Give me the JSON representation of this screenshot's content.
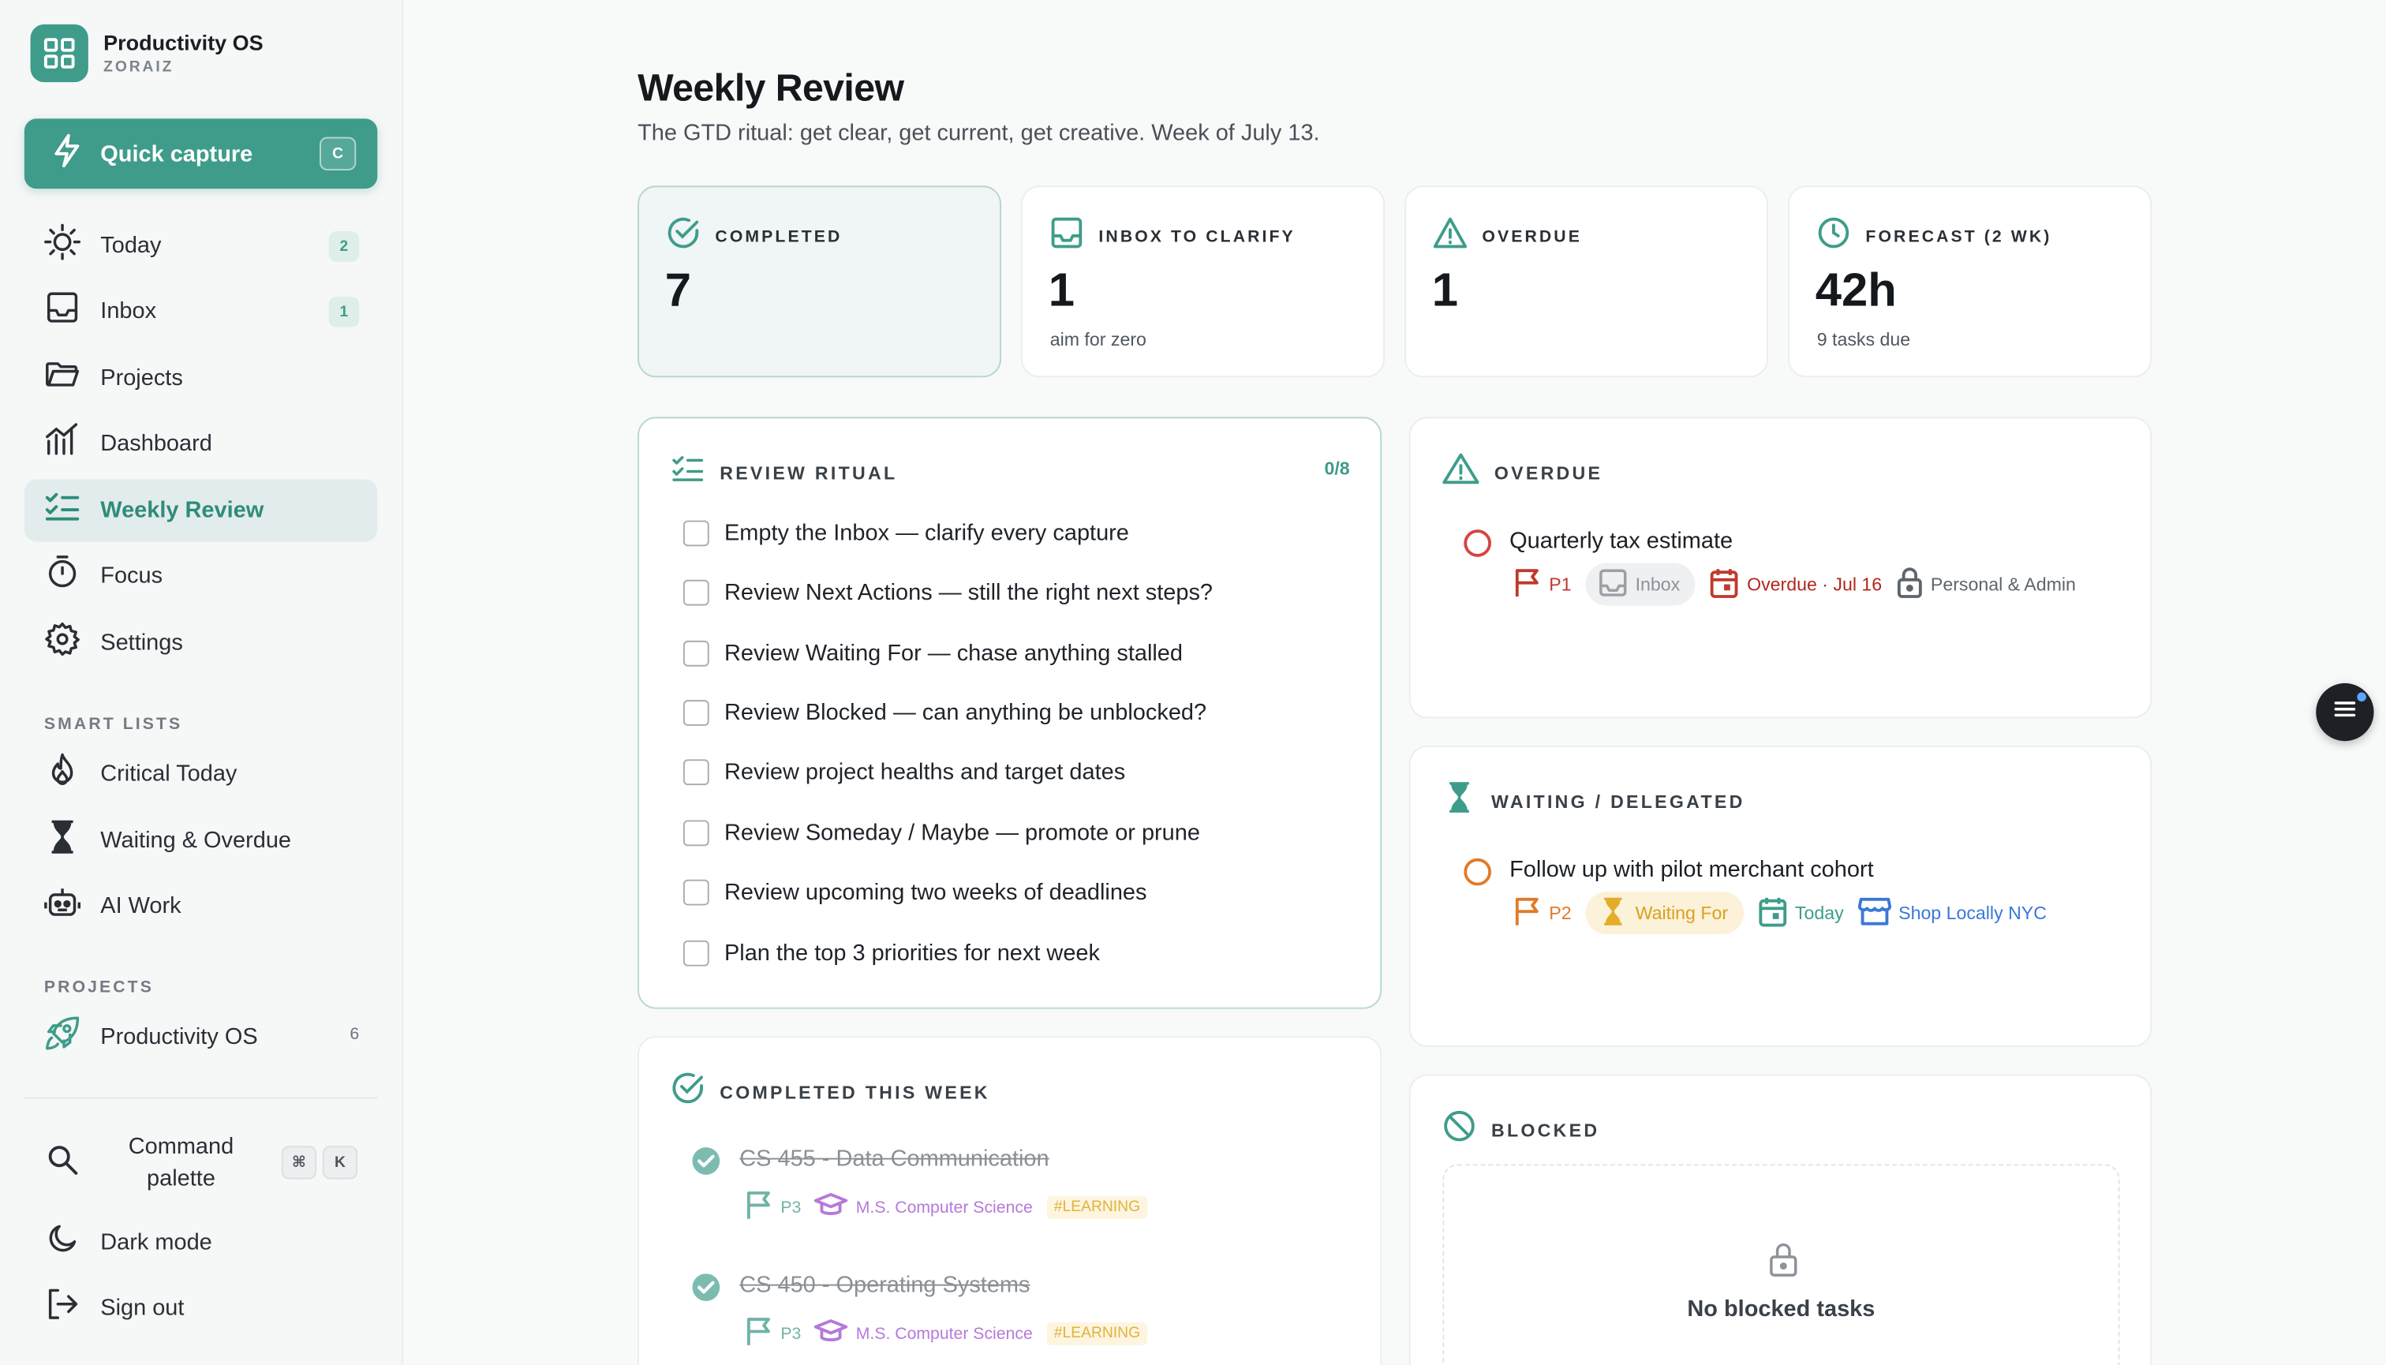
{
  "brand": {
    "name": "Productivity OS",
    "user": "ZORAIZ"
  },
  "quick_capture": {
    "label": "Quick capture",
    "shortcut": "C"
  },
  "nav": [
    {
      "label": "Today",
      "badge": "2",
      "icon": "sun-icon"
    },
    {
      "label": "Inbox",
      "badge": "1",
      "icon": "inbox-icon"
    },
    {
      "label": "Projects",
      "icon": "folder-icon"
    },
    {
      "label": "Dashboard",
      "icon": "chart-icon"
    },
    {
      "label": "Weekly Review",
      "icon": "checklist-icon",
      "active": true
    },
    {
      "label": "Focus",
      "icon": "timer-icon"
    },
    {
      "label": "Settings",
      "icon": "gear-icon"
    }
  ],
  "smart_lists": {
    "heading": "SMART LISTS",
    "items": [
      {
        "label": "Critical Today",
        "icon": "flame-icon"
      },
      {
        "label": "Waiting & Overdue",
        "icon": "hourglass-icon"
      },
      {
        "label": "AI Work",
        "icon": "robot-icon"
      }
    ]
  },
  "projects": {
    "heading": "PROJECTS",
    "items": [
      {
        "label": "Productivity OS",
        "count": "6",
        "icon": "rocket-icon"
      }
    ]
  },
  "footer": {
    "command_palette": "Command palette",
    "command_keys": [
      "⌘",
      "K"
    ],
    "dark_mode": "Dark mode",
    "sign_out": "Sign out"
  },
  "page": {
    "title": "Weekly Review",
    "subtitle": "The GTD ritual: get clear, get current, get creative. Week of July 13."
  },
  "stats": [
    {
      "label": "COMPLETED",
      "value": "7",
      "sub": "",
      "icon": "check-circle-icon"
    },
    {
      "label": "INBOX TO CLARIFY",
      "value": "1",
      "sub": "aim for zero",
      "icon": "inbox-icon"
    },
    {
      "label": "OVERDUE",
      "value": "1",
      "sub": "",
      "icon": "warning-icon"
    },
    {
      "label": "FORECAST (2 WK)",
      "value": "42h",
      "sub": "9 tasks due",
      "icon": "clock-icon"
    }
  ],
  "ritual": {
    "title": "REVIEW RITUAL",
    "count": "0/8",
    "items": [
      "Empty the Inbox — clarify every capture",
      "Review Next Actions — still the right next steps?",
      "Review Waiting For — chase anything stalled",
      "Review Blocked — can anything be unblocked?",
      "Review project healths and target dates",
      "Review Someday / Maybe — promote or prune",
      "Review upcoming two weeks of deadlines",
      "Plan the top 3 priorities for next week"
    ]
  },
  "overdue": {
    "title": "OVERDUE",
    "task": {
      "title": "Quarterly tax estimate",
      "priority": "P1",
      "status": "Inbox",
      "due": "Overdue · Jul 16",
      "area": "Personal & Admin"
    }
  },
  "waiting": {
    "title": "WAITING / DELEGATED",
    "task": {
      "title": "Follow up with pilot merchant cohort",
      "priority": "P2",
      "status": "Waiting For",
      "due": "Today",
      "project": "Shop Locally NYC"
    }
  },
  "completed_week": {
    "title": "COMPLETED THIS WEEK",
    "items": [
      {
        "title": "CS 455 - Data Communication",
        "priority": "P3",
        "area": "M.S. Computer Science",
        "tag": "#LEARNING"
      },
      {
        "title": "CS 450 - Operating Systems",
        "priority": "P3",
        "area": "M.S. Computer Science",
        "tag": "#LEARNING"
      }
    ]
  },
  "blocked": {
    "title": "BLOCKED",
    "empty": "No blocked tasks"
  },
  "colors": {
    "accent": "#3f9c8a",
    "danger": "#c0392b",
    "warning": "#e07b2a",
    "purple": "#b57ad9",
    "blue": "#3a78d6"
  }
}
